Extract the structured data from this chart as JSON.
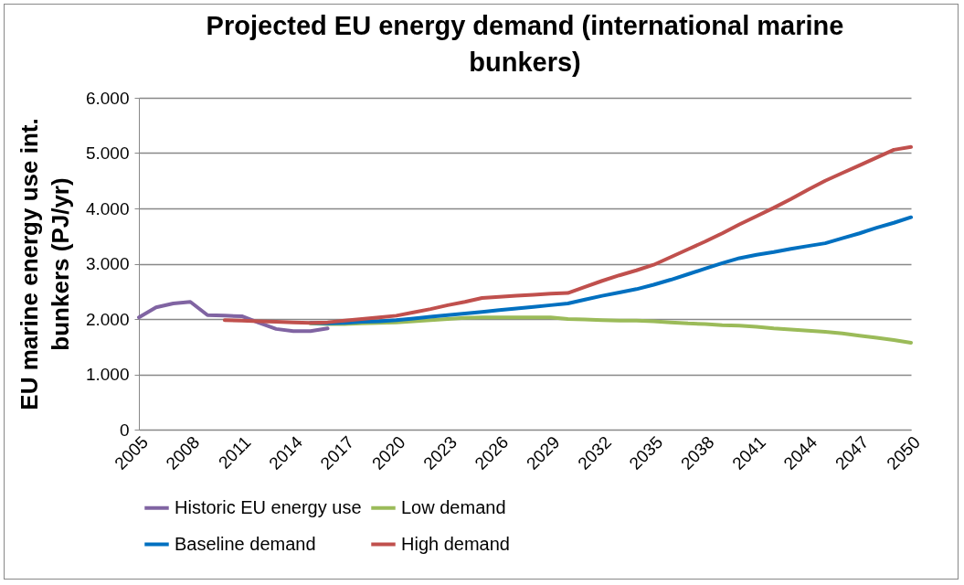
{
  "chart_data": {
    "type": "line",
    "title": "Projected EU energy demand (international marine bunkers)",
    "ylabel": "EU marine energy use int. bunkers (PJ/yr)",
    "categories": [
      "2005",
      null,
      null,
      "2008",
      null,
      null,
      "2011",
      null,
      null,
      "2014",
      null,
      null,
      "2017",
      null,
      null,
      "2020",
      null,
      null,
      "2023",
      null,
      null,
      "2026",
      null,
      null,
      "2029",
      null,
      null,
      "2032",
      null,
      null,
      "2035",
      null,
      null,
      "2038",
      null,
      null,
      "2041",
      null,
      null,
      "2044",
      null,
      null,
      "2047",
      null,
      null,
      "2050"
    ],
    "series": [
      {
        "name": "Historic EU energy use",
        "color": "#8064a2",
        "values": [
          2030,
          2210,
          2280,
          2310,
          2070,
          2060,
          2050,
          1930,
          1820,
          1780,
          1780,
          1830,
          null,
          null,
          null,
          null,
          null,
          null,
          null,
          null,
          null,
          null,
          null,
          null,
          null,
          null,
          null,
          null,
          null,
          null,
          null,
          null,
          null,
          null,
          null,
          null,
          null,
          null,
          null,
          null,
          null,
          null,
          null,
          null,
          null,
          null
        ]
      },
      {
        "name": "Low demand",
        "color": "#9bbb59",
        "values": [
          null,
          null,
          null,
          null,
          null,
          null,
          null,
          null,
          null,
          null,
          1920,
          1910,
          1910,
          1920,
          1930,
          1940,
          1960,
          1980,
          2000,
          2020,
          2030,
          2030,
          2030,
          2030,
          2030,
          2000,
          1990,
          1980,
          1970,
          1970,
          1960,
          1940,
          1920,
          1910,
          1890,
          1880,
          1860,
          1830,
          1810,
          1790,
          1770,
          1740,
          1700,
          1660,
          1620,
          1570
        ]
      },
      {
        "name": "Baseline demand",
        "color": "#0070c0",
        "values": [
          null,
          null,
          null,
          null,
          null,
          null,
          null,
          null,
          null,
          null,
          1930,
          1920,
          1930,
          1950,
          1960,
          1980,
          2010,
          2040,
          2070,
          2100,
          2130,
          2160,
          2190,
          2220,
          2250,
          2280,
          2350,
          2420,
          2480,
          2540,
          2620,
          2710,
          2810,
          2910,
          3010,
          3100,
          3160,
          3210,
          3270,
          3320,
          3370,
          3460,
          3550,
          3650,
          3740,
          3840
        ]
      },
      {
        "name": "High demand",
        "color": "#c0504d",
        "values": [
          null,
          null,
          null,
          null,
          null,
          1980,
          1970,
          1960,
          1950,
          1940,
          1930,
          1940,
          1970,
          2000,
          2030,
          2060,
          2120,
          2180,
          2250,
          2310,
          2380,
          2400,
          2420,
          2440,
          2460,
          2470,
          2580,
          2690,
          2790,
          2880,
          2980,
          3120,
          3260,
          3400,
          3550,
          3710,
          3860,
          4010,
          4170,
          4340,
          4500,
          4640,
          4780,
          4920,
          5060,
          5110
        ]
      }
    ],
    "ylim": [
      0,
      6000
    ],
    "yticks": [
      0,
      {
        "value": 1000,
        "label": "1.000"
      },
      {
        "value": 2000,
        "label": "2.000"
      },
      {
        "value": 3000,
        "label": "3.000"
      },
      {
        "value": 4000,
        "label": "4.000"
      },
      {
        "value": 5000,
        "label": "5.000"
      },
      {
        "value": 6000,
        "label": "6.000"
      }
    ],
    "grid": "y",
    "legend": "bottom",
    "marker": "none",
    "line_style": "solid"
  }
}
